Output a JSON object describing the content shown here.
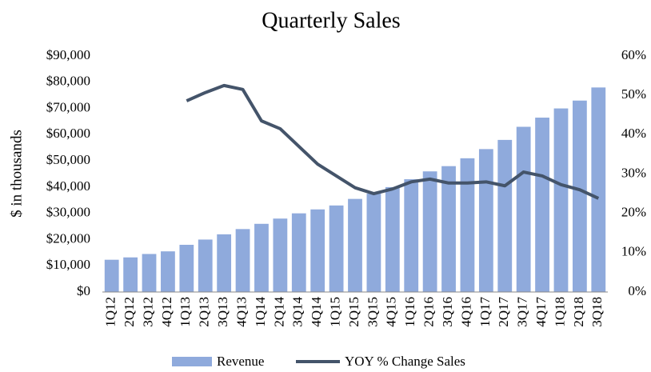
{
  "chart_data": {
    "type": "bar_line",
    "title": "Quarterly Sales",
    "y_label": "$ in thousands",
    "categories": [
      "1Q12",
      "2Q12",
      "3Q12",
      "4Q12",
      "1Q13",
      "2Q13",
      "3Q13",
      "4Q13",
      "1Q14",
      "2Q14",
      "3Q14",
      "4Q14",
      "1Q15",
      "2Q15",
      "3Q15",
      "4Q15",
      "1Q16",
      "2Q16",
      "3Q16",
      "4Q16",
      "1Q17",
      "2Q17",
      "3Q17",
      "4Q17",
      "1Q18",
      "2Q18",
      "3Q18"
    ],
    "series": [
      {
        "name": "Revenue",
        "type": "bar",
        "color": "#8faadc",
        "values": [
          12300,
          13200,
          14500,
          15500,
          18000,
          20000,
          22000,
          24000,
          26000,
          28000,
          30000,
          31500,
          33000,
          35500,
          37500,
          40000,
          43000,
          46000,
          48000,
          51000,
          54500,
          58000,
          63000,
          66500,
          70000,
          73000,
          78000
        ]
      },
      {
        "name": "YOY % Change Sales",
        "type": "line",
        "axis": "y2",
        "color": "#44546a",
        "values": [
          null,
          null,
          null,
          null,
          48.6,
          50.7,
          52.5,
          51.5,
          43.5,
          41.5,
          37,
          32.5,
          29.5,
          26.5,
          25,
          26.2,
          28,
          28.7,
          27.7,
          27.7,
          28,
          27,
          30.5,
          29.5,
          27.3,
          26,
          23.8
        ]
      }
    ],
    "ylim": [
      0,
      90000
    ],
    "yticks": [
      {
        "value": 0,
        "label": "$0"
      },
      {
        "value": 10000,
        "label": "$10,000"
      },
      {
        "value": 20000,
        "label": "$20,000"
      },
      {
        "value": 30000,
        "label": "$30,000"
      },
      {
        "value": 40000,
        "label": "$40,000"
      },
      {
        "value": 50000,
        "label": "$50,000"
      },
      {
        "value": 60000,
        "label": "$60,000"
      },
      {
        "value": 70000,
        "label": "$70,000"
      },
      {
        "value": 80000,
        "label": "$80,000"
      },
      {
        "value": 90000,
        "label": "$90,000"
      }
    ],
    "y2lim": [
      0,
      60
    ],
    "y2ticks": [
      {
        "value": 0,
        "label": "0%"
      },
      {
        "value": 10,
        "label": "10%"
      },
      {
        "value": 20,
        "label": "20%"
      },
      {
        "value": 30,
        "label": "30%"
      },
      {
        "value": 40,
        "label": "40%"
      },
      {
        "value": 50,
        "label": "50%"
      },
      {
        "value": 60,
        "label": "60%"
      }
    ],
    "grid": false,
    "legend": "bottom"
  }
}
